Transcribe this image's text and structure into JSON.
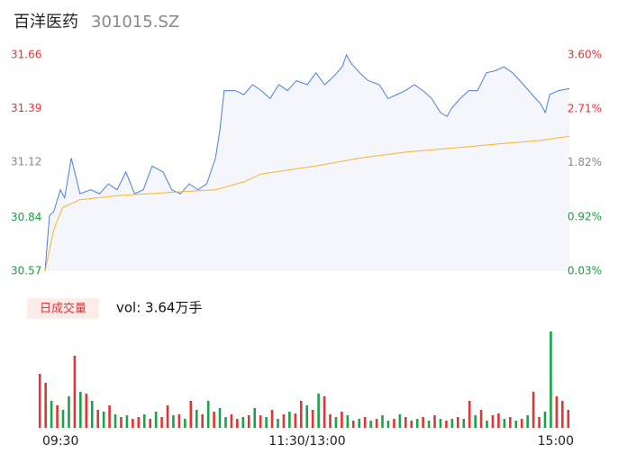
{
  "chart_data": [
    {
      "type": "line",
      "title": "百洋医药",
      "subtitle": "301015.SZ",
      "xlim": [
        0,
        240
      ],
      "ylim": [
        30.57,
        31.66
      ],
      "yticks": [
        30.57,
        30.84,
        31.12,
        31.39,
        31.66
      ],
      "y2lim": [
        0.03,
        3.6
      ],
      "y2ticks": [
        {
          "value": 0.03,
          "label": "0.03%"
        },
        {
          "value": 0.92,
          "label": "0.92%"
        },
        {
          "value": 1.82,
          "label": "1.82%"
        },
        {
          "value": 2.71,
          "label": "2.71%"
        },
        {
          "value": 3.6,
          "label": "3.60%"
        }
      ],
      "tick_colors": [
        "#1a9e3f",
        "#1a9e3f",
        "#888888",
        "#e33333",
        "#e33333"
      ],
      "area_color": "#f4f6fc",
      "series": [
        {
          "color": "#4a7fe0",
          "x": [
            0,
            2,
            4,
            7,
            9,
            12,
            14,
            16,
            21,
            25,
            29,
            33,
            37,
            41,
            45,
            49,
            54,
            58,
            62,
            66,
            70,
            74,
            78,
            80,
            82,
            87,
            91,
            95,
            99,
            103,
            107,
            111,
            115,
            120,
            124,
            128,
            132,
            136,
            138,
            140,
            144,
            148,
            153,
            157,
            161,
            165,
            169,
            173,
            177,
            181,
            184,
            186,
            190,
            194,
            198,
            202,
            206,
            210,
            214,
            219,
            223,
            227,
            229,
            231,
            235,
            240
          ],
          "values": [
            30.57,
            30.85,
            30.87,
            30.98,
            30.94,
            31.14,
            31.05,
            30.96,
            30.98,
            30.96,
            31.01,
            30.98,
            31.07,
            30.96,
            30.98,
            31.1,
            31.07,
            30.98,
            30.96,
            31.01,
            30.98,
            31.01,
            31.14,
            31.28,
            31.48,
            31.48,
            31.46,
            31.51,
            31.48,
            31.44,
            31.51,
            31.48,
            31.53,
            31.51,
            31.57,
            31.51,
            31.55,
            31.6,
            31.66,
            31.62,
            31.57,
            31.53,
            31.51,
            31.44,
            31.46,
            31.48,
            31.51,
            31.48,
            31.44,
            31.37,
            31.35,
            31.39,
            31.44,
            31.48,
            31.48,
            31.57,
            31.58,
            31.6,
            31.57,
            31.51,
            31.46,
            31.41,
            31.37,
            31.46,
            31.48,
            31.49
          ]
        },
        {
          "color": "#f5b52e",
          "x": [
            0,
            4,
            8,
            16,
            33,
            62,
            78,
            91,
            99,
            124,
            144,
            165,
            186,
            206,
            227,
            240
          ],
          "values": [
            30.57,
            30.78,
            30.89,
            30.93,
            30.95,
            30.97,
            30.98,
            31.02,
            31.06,
            31.1,
            31.14,
            31.17,
            31.19,
            31.21,
            31.23,
            31.25
          ]
        }
      ]
    },
    {
      "type": "bar",
      "label": "日成交量",
      "annotation": "vol: 3.64万手",
      "xlim": [
        0,
        240
      ],
      "xticks": [
        {
          "value": 0,
          "label": "09:30"
        },
        {
          "value": 120,
          "label": "11:30/13:00"
        },
        {
          "value": 240,
          "label": "15:00"
        }
      ],
      "ylim": [
        0,
        107
      ],
      "values": [
        60,
        50,
        30,
        25,
        20,
        35,
        80,
        40,
        38,
        30,
        20,
        18,
        25,
        15,
        12,
        14,
        10,
        12,
        15,
        10,
        18,
        12,
        25,
        14,
        15,
        10,
        30,
        20,
        15,
        30,
        18,
        22,
        12,
        15,
        10,
        12,
        14,
        22,
        14,
        12,
        20,
        10,
        15,
        18,
        16,
        30,
        25,
        20,
        38,
        35,
        15,
        12,
        18,
        14,
        8,
        10,
        12,
        8,
        10,
        14,
        8,
        10,
        15,
        12,
        8,
        10,
        12,
        8,
        14,
        10,
        8,
        10,
        12,
        10,
        30,
        14,
        20,
        8,
        14,
        16,
        10,
        12,
        8,
        10,
        14,
        40,
        12,
        18,
        107,
        35,
        30,
        20
      ],
      "colors": [
        "#e33333",
        "#e33333",
        "#1aa34a",
        "#e33333",
        "#1aa34a",
        "#1aa34a",
        "#e33333",
        "#1aa34a",
        "#e33333",
        "#1aa34a",
        "#e33333",
        "#1aa34a",
        "#e33333",
        "#1aa34a",
        "#e33333",
        "#1aa34a",
        "#e33333",
        "#e33333",
        "#1aa34a",
        "#e33333",
        "#1aa34a",
        "#e33333",
        "#e33333",
        "#1aa34a",
        "#e33333",
        "#1aa34a",
        "#e33333",
        "#1aa34a",
        "#e33333",
        "#1aa34a",
        "#e33333",
        "#1aa34a",
        "#1aa34a",
        "#e33333",
        "#e33333",
        "#1aa34a",
        "#e33333",
        "#1aa34a",
        "#e33333",
        "#1aa34a",
        "#e33333",
        "#1aa34a",
        "#e33333",
        "#1aa34a",
        "#e33333",
        "#e33333",
        "#1aa34a",
        "#e33333",
        "#1aa34a",
        "#e33333",
        "#e33333",
        "#1aa34a",
        "#e33333",
        "#1aa34a",
        "#e33333",
        "#1aa34a",
        "#e33333",
        "#1aa34a",
        "#e33333",
        "#1aa34a",
        "#1aa34a",
        "#e33333",
        "#1aa34a",
        "#e33333",
        "#e33333",
        "#1aa34a",
        "#e33333",
        "#1aa34a",
        "#e33333",
        "#1aa34a",
        "#e33333",
        "#1aa34a",
        "#e33333",
        "#1aa34a",
        "#e33333",
        "#1aa34a",
        "#e33333",
        "#1aa34a",
        "#e33333",
        "#e33333",
        "#1aa34a",
        "#e33333",
        "#1aa34a",
        "#e33333",
        "#1aa34a",
        "#e33333",
        "#e33333",
        "#1aa34a",
        "#1aa34a",
        "#e33333",
        "#e33333",
        "#e33333"
      ]
    }
  ]
}
